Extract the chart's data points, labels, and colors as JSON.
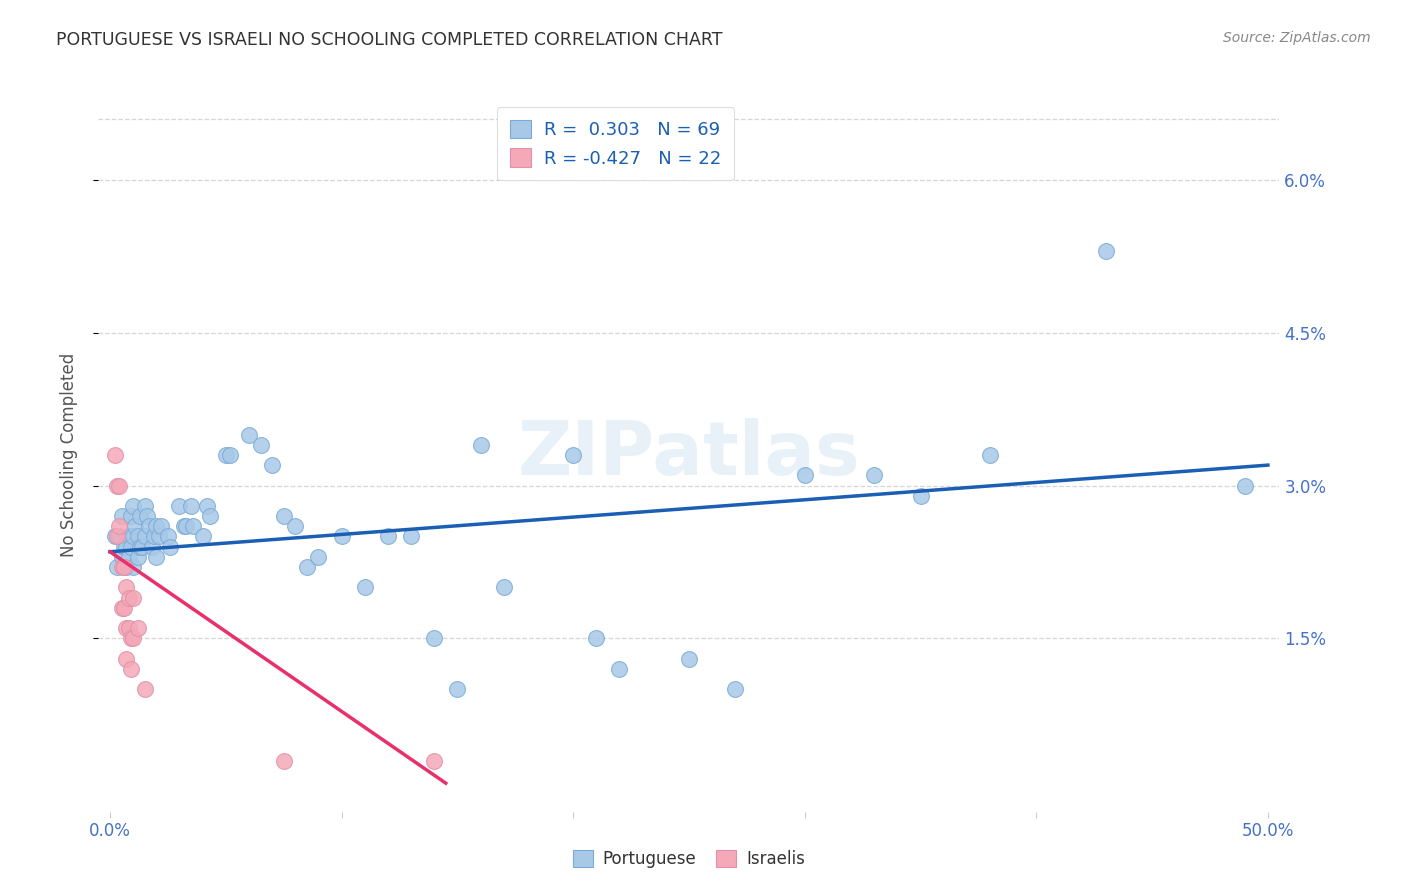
{
  "title": "PORTUGUESE VS ISRAELI NO SCHOOLING COMPLETED CORRELATION CHART",
  "source": "Source: ZipAtlas.com",
  "ylabel": "No Schooling Completed",
  "xlim": [
    -0.005,
    0.505
  ],
  "ylim": [
    -0.002,
    0.068
  ],
  "xticks": [
    0.0,
    0.1,
    0.2,
    0.3,
    0.4,
    0.5
  ],
  "xtick_labels": [
    "0.0%",
    "",
    "",
    "",
    "",
    "50.0%"
  ],
  "yticks": [
    0.015,
    0.03,
    0.045,
    0.06
  ],
  "ytick_labels": [
    "1.5%",
    "3.0%",
    "4.5%",
    "6.0%"
  ],
  "watermark": "ZIPatlas",
  "portuguese_color": "#a8c8e8",
  "israeli_color": "#f4a8b8",
  "line_blue": "#1a5fb4",
  "line_pink": "#e8306a",
  "portuguese_x": [
    0.002,
    0.003,
    0.004,
    0.005,
    0.005,
    0.006,
    0.007,
    0.007,
    0.008,
    0.008,
    0.009,
    0.009,
    0.01,
    0.01,
    0.01,
    0.011,
    0.012,
    0.012,
    0.013,
    0.013,
    0.014,
    0.015,
    0.015,
    0.016,
    0.017,
    0.018,
    0.019,
    0.02,
    0.02,
    0.021,
    0.022,
    0.025,
    0.026,
    0.03,
    0.032,
    0.033,
    0.035,
    0.036,
    0.04,
    0.042,
    0.043,
    0.05,
    0.052,
    0.06,
    0.065,
    0.07,
    0.075,
    0.08,
    0.085,
    0.09,
    0.1,
    0.11,
    0.12,
    0.13,
    0.14,
    0.15,
    0.16,
    0.17,
    0.2,
    0.21,
    0.22,
    0.25,
    0.27,
    0.3,
    0.33,
    0.35,
    0.38,
    0.43,
    0.49
  ],
  "portuguese_y": [
    0.025,
    0.022,
    0.025,
    0.027,
    0.023,
    0.024,
    0.022,
    0.024,
    0.025,
    0.023,
    0.027,
    0.024,
    0.028,
    0.025,
    0.022,
    0.026,
    0.025,
    0.023,
    0.027,
    0.024,
    0.024,
    0.028,
    0.025,
    0.027,
    0.026,
    0.024,
    0.025,
    0.026,
    0.023,
    0.025,
    0.026,
    0.025,
    0.024,
    0.028,
    0.026,
    0.026,
    0.028,
    0.026,
    0.025,
    0.028,
    0.027,
    0.033,
    0.033,
    0.035,
    0.034,
    0.032,
    0.027,
    0.026,
    0.022,
    0.023,
    0.025,
    0.02,
    0.025,
    0.025,
    0.015,
    0.01,
    0.034,
    0.02,
    0.033,
    0.015,
    0.012,
    0.013,
    0.01,
    0.031,
    0.031,
    0.029,
    0.033,
    0.053,
    0.03
  ],
  "israeli_x": [
    0.002,
    0.003,
    0.003,
    0.004,
    0.004,
    0.005,
    0.005,
    0.006,
    0.006,
    0.007,
    0.007,
    0.007,
    0.008,
    0.008,
    0.009,
    0.009,
    0.01,
    0.01,
    0.012,
    0.015,
    0.075,
    0.14
  ],
  "israeli_y": [
    0.033,
    0.03,
    0.025,
    0.03,
    0.026,
    0.022,
    0.018,
    0.022,
    0.018,
    0.02,
    0.016,
    0.013,
    0.019,
    0.016,
    0.015,
    0.012,
    0.019,
    0.015,
    0.016,
    0.01,
    0.003,
    0.003
  ],
  "blue_line_x": [
    0.0,
    0.5
  ],
  "blue_line_y": [
    0.0235,
    0.032
  ],
  "pink_line_x": [
    0.0,
    0.145
  ],
  "pink_line_y": [
    0.0235,
    0.0008
  ]
}
